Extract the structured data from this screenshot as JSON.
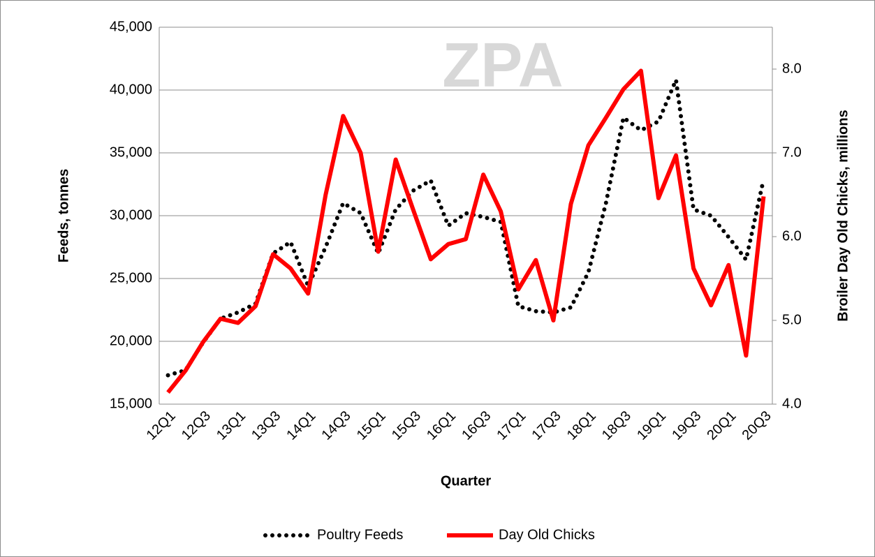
{
  "chart_data": {
    "type": "line",
    "watermark": "ZPA",
    "x_label": "Quarter",
    "y_label": "Feeds, tonnes",
    "y2_label": "Broiler Day Old Chicks, millions",
    "categories": [
      "12Q1",
      null,
      "12Q3",
      null,
      "13Q1",
      null,
      "13Q3",
      null,
      "14Q1",
      null,
      "14Q3",
      null,
      "15Q1",
      null,
      "15Q3",
      null,
      "16Q1",
      null,
      "16Q3",
      null,
      "17Q1",
      null,
      "17Q3",
      null,
      "18Q1",
      null,
      "18Q3",
      null,
      "19Q1",
      null,
      "19Q3",
      null,
      "20Q1",
      null,
      "20Q3"
    ],
    "series": [
      {
        "name": "Poultry Feeds",
        "color": "#000000",
        "style": "dotted",
        "axis": "y",
        "values": [
          17300,
          17700,
          19900,
          21800,
          22300,
          23000,
          27000,
          27900,
          24400,
          27500,
          31000,
          30200,
          27000,
          30500,
          32000,
          32800,
          29200,
          30200,
          29900,
          29500,
          22800,
          22400,
          22300,
          22700,
          25500,
          31000,
          37800,
          36800,
          37500,
          40800,
          30500,
          30000,
          28300,
          26500,
          32900
        ]
      },
      {
        "name": "Day Old Chicks",
        "color": "#ff0000",
        "style": "solid",
        "axis": "y2",
        "values": [
          4.14,
          4.4,
          4.74,
          5.02,
          4.97,
          5.17,
          5.79,
          5.62,
          5.32,
          6.5,
          7.44,
          7.0,
          5.82,
          6.92,
          6.32,
          5.73,
          5.91,
          5.97,
          6.74,
          6.3,
          5.37,
          5.72,
          5.0,
          6.39,
          7.09,
          7.42,
          7.76,
          7.98,
          6.46,
          6.97,
          5.62,
          5.18,
          5.66,
          4.58,
          6.48
        ]
      }
    ],
    "ylim": [
      15000,
      45000
    ],
    "yticks": [
      {
        "value": 15000,
        "label": "15,000"
      },
      {
        "value": 20000,
        "label": "20,000"
      },
      {
        "value": 25000,
        "label": "25,000"
      },
      {
        "value": 30000,
        "label": "30,000"
      },
      {
        "value": 35000,
        "label": "35,000"
      },
      {
        "value": 40000,
        "label": "40,000"
      },
      {
        "value": 45000,
        "label": "45,000"
      }
    ],
    "y2lim": [
      4,
      8.5
    ],
    "y2ticks": [
      {
        "value": 4,
        "label": "4.0"
      },
      {
        "value": 5,
        "label": "5.0"
      },
      {
        "value": 6,
        "label": "6.0"
      },
      {
        "value": 7,
        "label": "7.0"
      },
      {
        "value": 8,
        "label": "8.0"
      }
    ],
    "grid": true,
    "legend": "bottom"
  }
}
